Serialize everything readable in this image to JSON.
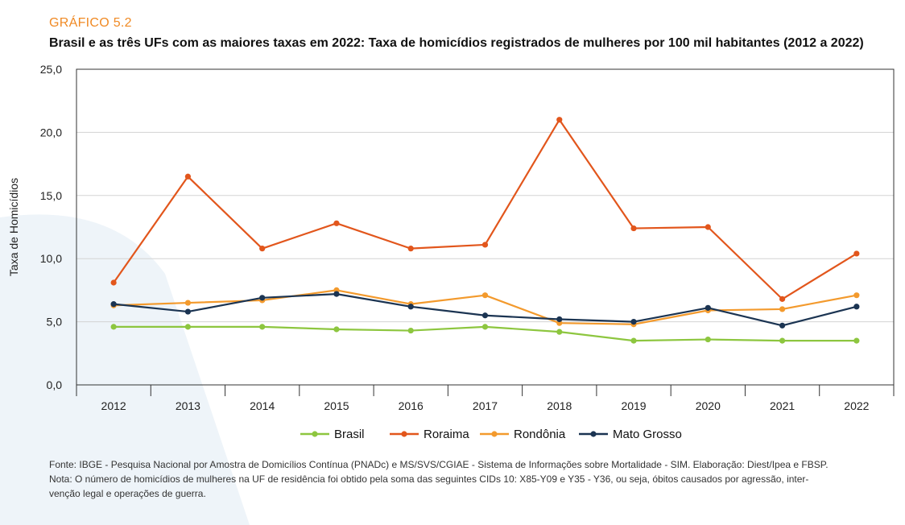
{
  "header": {
    "label": "GRÁFICO 5.2",
    "title": "Brasil e as três UFs com as maiores taxas em 2022: Taxa de homicídios registrados de mulheres por 100 mil habitantes (2012 a 2022)"
  },
  "chart_data": {
    "type": "line",
    "ylabel": "Taxa de Homicídios",
    "xlabel": "",
    "ylim": [
      0,
      25
    ],
    "yticks": [
      "0,0",
      "5,0",
      "10,0",
      "15,0",
      "20,0",
      "25,0"
    ],
    "categories": [
      "2012",
      "2013",
      "2014",
      "2015",
      "2016",
      "2017",
      "2018",
      "2019",
      "2020",
      "2021",
      "2022"
    ],
    "grid": true,
    "legend_position": "bottom",
    "series": [
      {
        "name": "Brasil",
        "color": "#8dc63f",
        "values": [
          4.6,
          4.6,
          4.6,
          4.4,
          4.3,
          4.6,
          4.2,
          3.5,
          3.6,
          3.5,
          3.5
        ]
      },
      {
        "name": "Roraima",
        "color": "#e2561c",
        "values": [
          8.1,
          16.5,
          10.8,
          12.8,
          10.8,
          11.1,
          21.0,
          12.4,
          12.5,
          6.8,
          10.4
        ]
      },
      {
        "name": "Rondônia",
        "color": "#f39a2d",
        "values": [
          6.3,
          6.5,
          6.7,
          7.5,
          6.4,
          7.1,
          4.9,
          4.8,
          5.9,
          6.0,
          7.1
        ]
      },
      {
        "name": "Mato Grosso",
        "color": "#1b3452",
        "values": [
          6.4,
          5.8,
          6.9,
          7.2,
          6.2,
          5.5,
          5.2,
          5.0,
          6.1,
          4.7,
          6.2
        ]
      }
    ]
  },
  "footer": {
    "line1": "Fonte: IBGE - Pesquisa Nacional por Amostra de Domicílios Contínua (PNADc) e MS/SVS/CGIAE - Sistema de Informações sobre Mortalidade - SIM. Elaboração: Diest/Ipea e FBSP.",
    "line2": "Nota: O número de homicídios de mulheres na UF de residência foi obtido pela soma das seguintes CIDs 10: X85-Y09 e Y35 - Y36, ou seja, óbitos causados por agressão, inter-",
    "line3": "venção legal e operações de guerra."
  }
}
